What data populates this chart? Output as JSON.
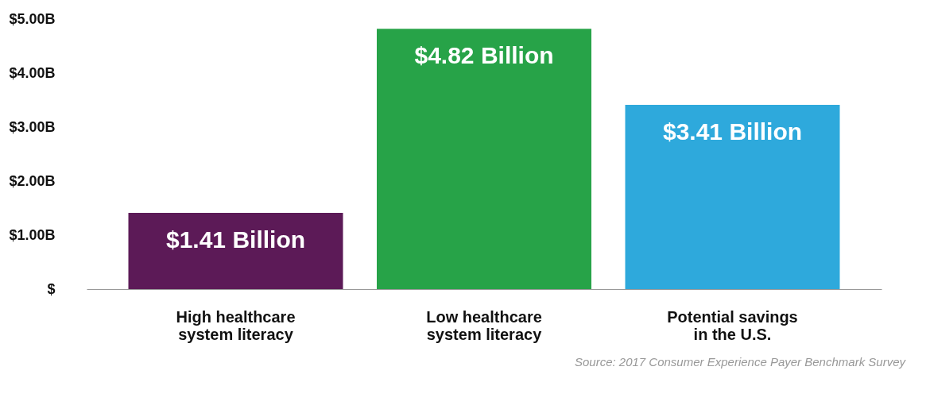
{
  "chart_data": {
    "type": "bar",
    "categories": [
      "High healthcare\nsystem literacy",
      "Low healthcare\nsystem literacy",
      "Potential savings\nin the U.S."
    ],
    "values": [
      1.41,
      4.82,
      3.41
    ],
    "colors": [
      "#5c1a57",
      "#27a348",
      "#2ea9dc"
    ],
    "value_labels": [
      "$1.41 Billion",
      "$4.82 Billion",
      "$3.41 Billion"
    ],
    "ylim": [
      0,
      5
    ],
    "yticks": [
      {
        "value": 0,
        "label": "$"
      },
      {
        "value": 1,
        "label": "$1.00B"
      },
      {
        "value": 2,
        "label": "$2.00B"
      },
      {
        "value": 3,
        "label": "$3.00B"
      },
      {
        "value": 4,
        "label": "$4.00B"
      },
      {
        "value": 5,
        "label": "$5.00B"
      }
    ],
    "grid": false,
    "legend": false,
    "annotations": [
      "Source: 2017 Consumer Experience Payer Benchmark Survey"
    ]
  }
}
